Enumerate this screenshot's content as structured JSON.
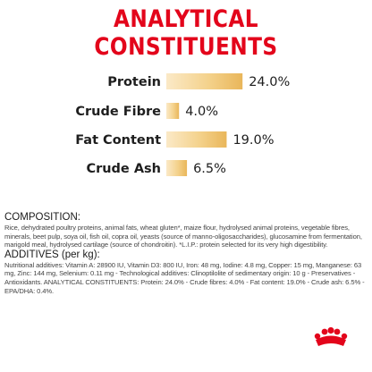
{
  "title": "ANALYTICAL CONSTITUENTS",
  "chart_data": {
    "type": "bar",
    "title": "",
    "categories": [
      "Protein",
      "Crude Fibre",
      "Fat Content",
      "Crude Ash"
    ],
    "values": [
      24.0,
      4.0,
      19.0,
      6.5
    ],
    "value_labels": [
      "24.0%",
      "4.0%",
      "19.0%",
      "6.5%"
    ],
    "unit": "%",
    "bar_colors": [
      "#fbe9c7",
      "#f4d28c",
      "#e9b65a"
    ]
  },
  "composition": {
    "heading": "COMPOSITION:",
    "text": "Rice, dehydrated poultry proteins, animal fats, wheat gluten*, maize flour, hydrolysed animal proteins, vegetable fibres, minerals, beet pulp, soya oil, fish oil, copra oil, yeasts (source of manno-oligosaccharides), glucosamine from fermentation, marigold meal, hydrolysed cartilage (source of chondroitin). *L.I.P.: protein selected for its very high digestibility."
  },
  "additives": {
    "heading": "ADDITIVES (per kg):",
    "text": "Nutritional additives: Vitamin A: 28900 IU, Vitamin D3: 800 IU, Iron: 48 mg, Iodine: 4.8 mg, Copper: 15 mg, Manganese: 63 mg, Zinc: 144 mg, Selenium: 0.11 mg - Technological additives: Clinoptilolite of sedimentary origin: 10 g - Preservatives - Antioxidants. ANALYTICAL CONSTITUENTS: Protein: 24.0% - Crude fibres: 4.0% - Fat content: 19.0% - Crude ash: 6.5% - EPA/DHA: 0.4%."
  },
  "brand_color": "#e3051b"
}
